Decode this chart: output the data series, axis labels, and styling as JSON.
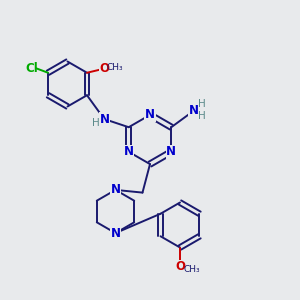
{
  "bg_color": "#e8eaec",
  "bond_color": "#1a1a6e",
  "atom_colors": {
    "N": "#0000cc",
    "O": "#cc0000",
    "Cl": "#00aa00",
    "C": "#1a1a6e",
    "H": "#5a8a8a"
  },
  "figsize": [
    3.0,
    3.0
  ],
  "dpi": 100
}
